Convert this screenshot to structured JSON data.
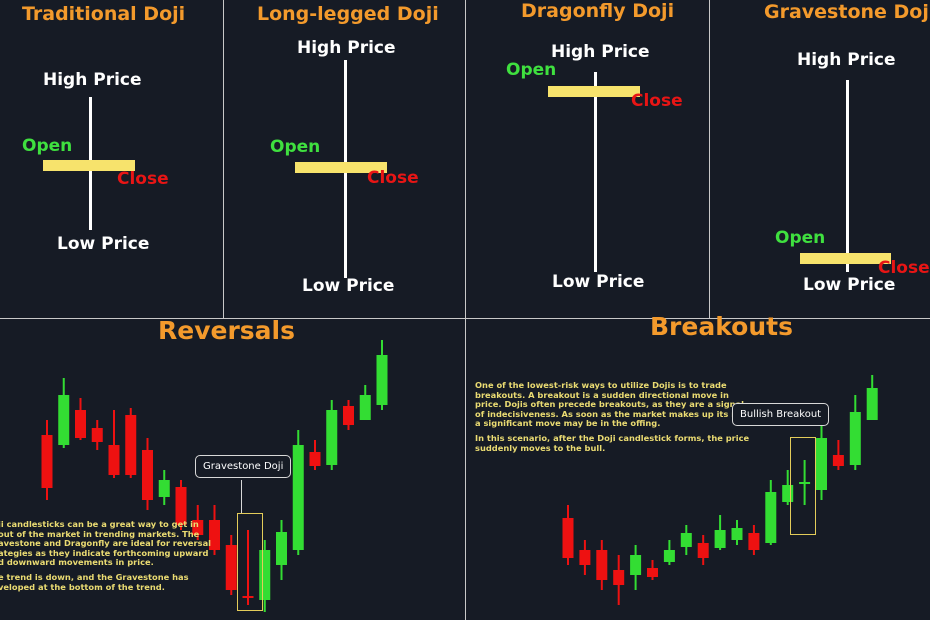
{
  "colors": {
    "title": "#f39a2c",
    "up": "#33dd33",
    "down": "#ee1111",
    "doji_bar": "#f7e36c",
    "background": "#161b25"
  },
  "top_panels": [
    {
      "title": "Traditional Doji",
      "high": "High Price",
      "low": "Low Price",
      "open": "Open",
      "close": "Close"
    },
    {
      "title": "Long-legged Doji",
      "high": "High Price",
      "low": "Low Price",
      "open": "Open",
      "close": "Close"
    },
    {
      "title": "Dragonfly Doji",
      "high": "High Price",
      "low": "Low Price",
      "open": "Open",
      "close": "Close"
    },
    {
      "title": "Gravestone Doji",
      "high": "High Price",
      "low": "Low Price",
      "open": "Open",
      "close": "Close"
    }
  ],
  "reversals": {
    "title": "Reversals",
    "callout": "Gravestone Doji",
    "text": [
      "ji candlesticks can be a great way to get in",
      "out of the market in trending markets. The",
      "avestone and Dragonfly are ideal for reversal",
      "ategies as they indicate forthcoming upward",
      "d downward movements in price.",
      "",
      "e trend is down, and the Gravestone has",
      "veloped at the bottom of the trend."
    ],
    "candles": [
      {
        "o": 92.5,
        "h": 100,
        "l": 60,
        "c": 66
      },
      {
        "o": 87.5,
        "h": 121,
        "l": 86,
        "c": 112.5
      },
      {
        "o": 105,
        "h": 111,
        "l": 90,
        "c": 91
      },
      {
        "o": 96,
        "h": 100,
        "l": 85,
        "c": 89
      },
      {
        "o": 87.5,
        "h": 105,
        "l": 71,
        "c": 72.5
      },
      {
        "o": 102.5,
        "h": 106,
        "l": 71,
        "c": 72.5
      },
      {
        "o": 85,
        "h": 91,
        "l": 55,
        "c": 60
      },
      {
        "o": 61.5,
        "h": 75,
        "l": 57.5,
        "c": 70
      },
      {
        "o": 66.5,
        "h": 70,
        "l": 45,
        "c": 47.5
      },
      {
        "o": 50,
        "h": 57.5,
        "l": 40,
        "c": 42.5
      },
      {
        "o": 50,
        "h": 57.5,
        "l": 32.5,
        "c": 35
      },
      {
        "o": 37.5,
        "h": 42.5,
        "l": 12.5,
        "c": 15
      },
      {
        "o": 12,
        "h": 45,
        "l": 7.5,
        "c": 11
      },
      {
        "o": 10,
        "h": 40,
        "l": 4,
        "c": 35
      },
      {
        "o": 27.5,
        "h": 50,
        "l": 20,
        "c": 44
      },
      {
        "o": 35,
        "h": 95,
        "l": 32.5,
        "c": 87.5
      },
      {
        "o": 84,
        "h": 90,
        "l": 75,
        "c": 77
      },
      {
        "o": 77.5,
        "h": 110,
        "l": 75,
        "c": 105
      },
      {
        "o": 107,
        "h": 110,
        "l": 95,
        "c": 97.5
      },
      {
        "o": 100,
        "h": 117.5,
        "l": 100,
        "c": 112.5
      },
      {
        "o": 107.5,
        "h": 140,
        "l": 105,
        "c": 132.5
      }
    ]
  },
  "breakouts": {
    "title": "Breakouts",
    "callout": "Bullish Breakout",
    "text": [
      "One of the lowest-risk ways to utilize Dojis  is to trade",
      "breakouts. A breakout is a sudden directional move in",
      "price. Dojis often precede breakouts, as they are a signal",
      "of indecisiveness. As soon as the market makes up its mind,",
      "a significant move may be in the offing.",
      "",
      "In this scenario,  after the Doji candlestick forms, the price",
      "suddenly moves to the bull."
    ],
    "candles": [
      {
        "o": 51,
        "h": 57.5,
        "l": 27.5,
        "c": 31
      },
      {
        "o": 35,
        "h": 40,
        "l": 22.5,
        "c": 27.5
      },
      {
        "o": 35,
        "h": 40,
        "l": 15,
        "c": 20
      },
      {
        "o": 25,
        "h": 32.5,
        "l": 7.5,
        "c": 17.5
      },
      {
        "o": 22.5,
        "h": 37.5,
        "l": 15,
        "c": 32.5
      },
      {
        "o": 26,
        "h": 30,
        "l": 20,
        "c": 21.5
      },
      {
        "o": 29,
        "h": 40,
        "l": 27.5,
        "c": 35
      },
      {
        "o": 36.5,
        "h": 47.5,
        "l": 32.5,
        "c": 43.5
      },
      {
        "o": 38.5,
        "h": 42.5,
        "l": 27.5,
        "c": 31
      },
      {
        "o": 36,
        "h": 52.5,
        "l": 35,
        "c": 45
      },
      {
        "o": 40,
        "h": 50,
        "l": 37.5,
        "c": 46
      },
      {
        "o": 43.5,
        "h": 47.5,
        "l": 32.5,
        "c": 35
      },
      {
        "o": 38.5,
        "h": 70,
        "l": 37.5,
        "c": 64
      },
      {
        "o": 59,
        "h": 75,
        "l": 57.5,
        "c": 67.5
      },
      {
        "o": 68,
        "h": 80,
        "l": 57.5,
        "c": 69
      },
      {
        "o": 65,
        "h": 100,
        "l": 60,
        "c": 91
      },
      {
        "o": 82.5,
        "h": 90,
        "l": 75,
        "c": 77
      },
      {
        "o": 77.5,
        "h": 112.5,
        "l": 75,
        "c": 104
      },
      {
        "o": 100,
        "h": 122.5,
        "l": 100,
        "c": 116
      }
    ]
  }
}
